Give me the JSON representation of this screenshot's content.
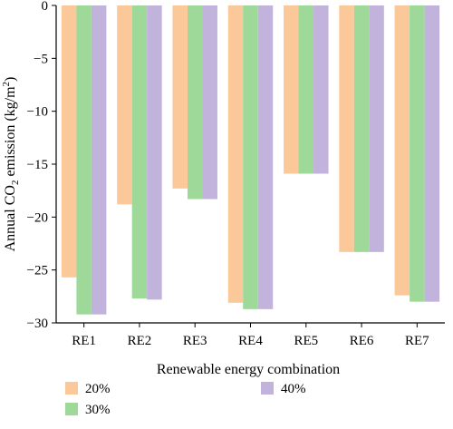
{
  "chart_data": {
    "type": "bar",
    "categories": [
      "RE1",
      "RE2",
      "RE3",
      "RE4",
      "RE5",
      "RE6",
      "RE7"
    ],
    "series": [
      {
        "name": "20%",
        "color": "#fbc89a",
        "values": [
          -25.7,
          -18.8,
          -17.3,
          -28.1,
          -15.9,
          -23.3,
          -27.4
        ]
      },
      {
        "name": "30%",
        "color": "#9ed99a",
        "values": [
          -29.2,
          -27.7,
          -18.3,
          -28.7,
          -15.9,
          -23.3,
          -28.0
        ]
      },
      {
        "name": "40%",
        "color": "#c2b3dc",
        "values": [
          -29.2,
          -27.8,
          -18.3,
          -28.7,
          -15.9,
          -23.3,
          -28.0
        ]
      }
    ],
    "xlabel": "Renewable energy combination",
    "ylabel_prefix": "Annual CO",
    "ylabel_sub": "2",
    "ylabel_suffix": " emission (kg/m",
    "ylabel_sup": "2",
    "ylabel_end": ")",
    "ylim": [
      -30,
      0
    ],
    "yticks": [
      0,
      -5,
      -10,
      -15,
      -20,
      -25,
      -30
    ],
    "ytick_labels": [
      "0",
      "−5",
      "−10",
      "−15",
      "−20",
      "−25",
      "−30"
    ],
    "grid": false,
    "legend_position": "bottom"
  }
}
